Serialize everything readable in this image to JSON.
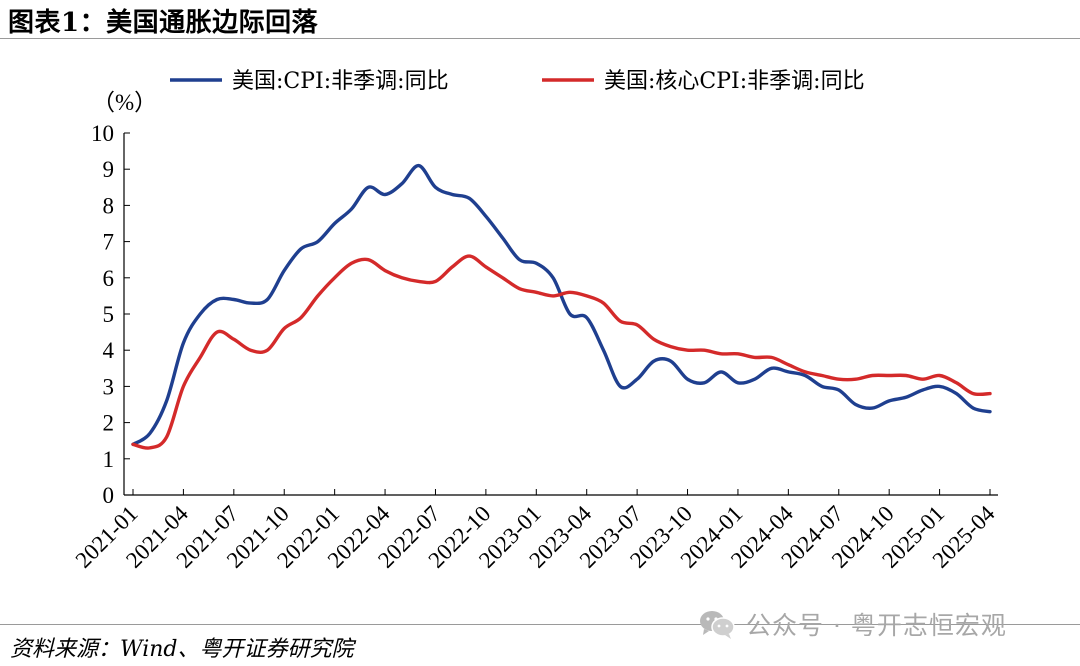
{
  "figure": {
    "title": "图表1：美国通胀边际回落",
    "source": "资料来源：Wind、粤开证券研究院",
    "watermark": "公众号 · 粤开志恒宏观",
    "watermark_icon": "wechat-icon"
  },
  "chart_data": {
    "type": "line",
    "title": "",
    "xlabel": "",
    "ylabel": "（%）",
    "ylim": [
      0,
      10
    ],
    "yticks": [
      0,
      1,
      2,
      3,
      4,
      5,
      6,
      7,
      8,
      9,
      10
    ],
    "grid": false,
    "legend_position": "top",
    "x": [
      "2021-01",
      "2021-02",
      "2021-03",
      "2021-04",
      "2021-05",
      "2021-06",
      "2021-07",
      "2021-08",
      "2021-09",
      "2021-10",
      "2021-11",
      "2021-12",
      "2022-01",
      "2022-02",
      "2022-03",
      "2022-04",
      "2022-05",
      "2022-06",
      "2022-07",
      "2022-08",
      "2022-09",
      "2022-10",
      "2022-11",
      "2022-12",
      "2023-01",
      "2023-02",
      "2023-03",
      "2023-04",
      "2023-05",
      "2023-06",
      "2023-07",
      "2023-08",
      "2023-09",
      "2023-10",
      "2023-11",
      "2023-12",
      "2024-01",
      "2024-02",
      "2024-03",
      "2024-04",
      "2024-05",
      "2024-06",
      "2024-07",
      "2024-08",
      "2024-09",
      "2024-10",
      "2024-11",
      "2024-12",
      "2025-01",
      "2025-02",
      "2025-03",
      "2025-04"
    ],
    "xtick_labels": [
      "2021-01",
      "2021-04",
      "2021-07",
      "2021-10",
      "2022-01",
      "2022-04",
      "2022-07",
      "2022-10",
      "2023-01",
      "2023-04",
      "2023-07",
      "2023-10",
      "2024-01",
      "2024-04",
      "2024-07",
      "2024-10",
      "2025-01",
      "2025-04"
    ],
    "series": [
      {
        "name": "美国:CPI:非季调:同比",
        "color": "#1f3f8f",
        "values": [
          1.4,
          1.7,
          2.6,
          4.2,
          5.0,
          5.4,
          5.4,
          5.3,
          5.4,
          6.2,
          6.8,
          7.0,
          7.5,
          7.9,
          8.5,
          8.3,
          8.6,
          9.1,
          8.5,
          8.3,
          8.2,
          7.7,
          7.1,
          6.5,
          6.4,
          6.0,
          5.0,
          4.9,
          4.0,
          3.0,
          3.2,
          3.7,
          3.7,
          3.2,
          3.1,
          3.4,
          3.1,
          3.2,
          3.5,
          3.4,
          3.3,
          3.0,
          2.9,
          2.5,
          2.4,
          2.6,
          2.7,
          2.9,
          3.0,
          2.8,
          2.4,
          2.3
        ]
      },
      {
        "name": "美国:核心CPI:非季调:同比",
        "color": "#d42a2a",
        "values": [
          1.4,
          1.3,
          1.6,
          3.0,
          3.8,
          4.5,
          4.3,
          4.0,
          4.0,
          4.6,
          4.9,
          5.5,
          6.0,
          6.4,
          6.5,
          6.2,
          6.0,
          5.9,
          5.9,
          6.3,
          6.6,
          6.3,
          6.0,
          5.7,
          5.6,
          5.5,
          5.6,
          5.5,
          5.3,
          4.8,
          4.7,
          4.3,
          4.1,
          4.0,
          4.0,
          3.9,
          3.9,
          3.8,
          3.8,
          3.6,
          3.4,
          3.3,
          3.2,
          3.2,
          3.3,
          3.3,
          3.3,
          3.2,
          3.3,
          3.1,
          2.8,
          2.8
        ]
      }
    ]
  }
}
